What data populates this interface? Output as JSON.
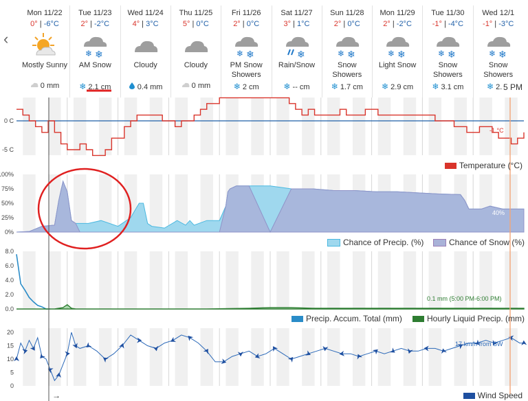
{
  "forecast": {
    "days": [
      {
        "name": "Mon 11/22",
        "hi": "0°",
        "lo": "-6°C",
        "cond": "Mostly Sunny",
        "icon": "sun-cloud-icon",
        "precip_icon": "cloud-icon",
        "precip": "0 mm"
      },
      {
        "name": "Tue 11/23",
        "hi": "2°",
        "lo": "-2°C",
        "cond": "AM Snow",
        "icon": "snow-cloud-icon",
        "precip_icon": "snowflake-icon",
        "precip": "2.1 cm"
      },
      {
        "name": "Wed 11/24",
        "hi": "4°",
        "lo": "3°C",
        "cond": "Cloudy",
        "icon": "cloud-icon",
        "precip_icon": "raindrop-icon",
        "precip": "0.4 mm"
      },
      {
        "name": "Thu 11/25",
        "hi": "5°",
        "lo": "0°C",
        "cond": "Cloudy",
        "icon": "cloud-icon",
        "precip_icon": "cloud-icon",
        "precip": "0 mm"
      },
      {
        "name": "Fri 11/26",
        "hi": "2°",
        "lo": "0°C",
        "cond": "PM Snow Showers",
        "icon": "snow-cloud-icon",
        "precip_icon": "snowflake-icon",
        "precip": "2 cm"
      },
      {
        "name": "Sat 11/27",
        "hi": "3°",
        "lo": "1°C",
        "cond": "Rain/Snow",
        "icon": "rain-snow-icon",
        "precip_icon": "snowflake-icon",
        "precip": "-- cm"
      },
      {
        "name": "Sun 11/28",
        "hi": "2°",
        "lo": "0°C",
        "cond": "Snow Showers",
        "icon": "snow-cloud-icon",
        "precip_icon": "snowflake-icon",
        "precip": "1.7 cm"
      },
      {
        "name": "Mon 11/29",
        "hi": "2°",
        "lo": "-2°C",
        "cond": "Light Snow",
        "icon": "snow-cloud-icon",
        "precip_icon": "snowflake-icon",
        "precip": "2.9 cm"
      },
      {
        "name": "Tue 11/30",
        "hi": "-1°",
        "lo": "-4°C",
        "cond": "Snow Showers",
        "icon": "snow-cloud-icon",
        "precip_icon": "snowflake-icon",
        "precip": "3.1 cm"
      },
      {
        "name": "Wed 12/1",
        "hi": "-1°",
        "lo": "-3°C",
        "cond": "Snow Showers",
        "icon": "snow-cloud-icon",
        "precip_icon": "snowflake-icon",
        "precip": "2.←"
      }
    ],
    "current_time": "5 PM",
    "nav_prev": "‹"
  },
  "colors": {
    "temperature": "#d9342b",
    "zero_line": "#1f5fa8",
    "chance_precip": "#9fd8ee",
    "chance_snow": "#a9b2d8",
    "accum": "#2a8cc8",
    "hourly_liquid": "#2e7d32",
    "wind": "#2a68b8",
    "highlight_circle": "#e02020",
    "current_time_line": "#f2a679"
  },
  "chart_data": [
    {
      "type": "line",
      "legend": "Temperature (°C)",
      "ylabels": [
        "0 C",
        "-5 C"
      ],
      "annotation": "-1 °C",
      "x": [
        0,
        3,
        6,
        9,
        12,
        15,
        18,
        21,
        24,
        27,
        30,
        33,
        36,
        39,
        42,
        45,
        48,
        51,
        54,
        57,
        60,
        63,
        66,
        69,
        72,
        75,
        78,
        81,
        84,
        87,
        90,
        93,
        96,
        99,
        102,
        105,
        108,
        111,
        114,
        117,
        120,
        123,
        126,
        129,
        132,
        135,
        138,
        141,
        144,
        147,
        150,
        153,
        156,
        159,
        162,
        165,
        168,
        171,
        174,
        177,
        180,
        183,
        186,
        189,
        192,
        195,
        198,
        201,
        204,
        207,
        210,
        213,
        216,
        219,
        222,
        225,
        228,
        231,
        234,
        237,
        240
      ],
      "y": [
        2,
        1,
        0,
        -1,
        -2,
        0,
        -2,
        -4,
        -5,
        -5,
        -4,
        -5,
        -6,
        -6,
        -5,
        -3,
        -3,
        -1,
        0,
        1,
        1,
        1,
        1,
        0,
        0,
        -1,
        0,
        0,
        1,
        2,
        3,
        3,
        4,
        4,
        4,
        4,
        4,
        4,
        4,
        4,
        4,
        4,
        4,
        3,
        2,
        1,
        2,
        1,
        1,
        1,
        1,
        2,
        1,
        1,
        1,
        2,
        2,
        1,
        1,
        1,
        1,
        1,
        1,
        1,
        1,
        1,
        0,
        0,
        0,
        -1,
        -1,
        -2,
        -2,
        -1,
        -1,
        -2,
        -3,
        -3,
        -4,
        -3,
        -2
      ]
    },
    {
      "type": "area",
      "ylabels": [
        "100%",
        "75%",
        "50%",
        "25%",
        "0%"
      ],
      "legend_precip": "Chance of Precip. (%)",
      "legend_snow": "Chance of Snow (%)",
      "annotation": "40%",
      "x": [
        0,
        6,
        12,
        18,
        20,
        22,
        24,
        26,
        28,
        30,
        34,
        40,
        48,
        54,
        58,
        60,
        62,
        64,
        70,
        76,
        80,
        82,
        84,
        90,
        96,
        99,
        100,
        101,
        104,
        110,
        120,
        130,
        140,
        150,
        160,
        170,
        180,
        190,
        200,
        210,
        212,
        214,
        220,
        224,
        230,
        236,
        240
      ],
      "precip": [
        0,
        1,
        10,
        12,
        55,
        88,
        70,
        20,
        15,
        15,
        15,
        20,
        10,
        25,
        50,
        50,
        15,
        10,
        7,
        20,
        12,
        20,
        12,
        20,
        20,
        45,
        70,
        75,
        80,
        80,
        80,
        75,
        75,
        72,
        72,
        70,
        70,
        68,
        66,
        65,
        55,
        40,
        40,
        45,
        40,
        40,
        40
      ],
      "snow": [
        0,
        1,
        10,
        12,
        55,
        88,
        70,
        20,
        15,
        0,
        0,
        0,
        0,
        0,
        0,
        0,
        0,
        0,
        0,
        0,
        0,
        0,
        0,
        0,
        0,
        45,
        70,
        75,
        80,
        80,
        0,
        75,
        75,
        72,
        72,
        70,
        70,
        68,
        66,
        65,
        55,
        40,
        40,
        45,
        40,
        40,
        40
      ]
    },
    {
      "type": "area",
      "ylabels": [
        "8.0",
        "6.0",
        "4.0",
        "2.0",
        "0.0"
      ],
      "legend_accum": "Precip. Accum. Total (mm)",
      "legend_hourly": "Hourly Liquid Precip. (mm)",
      "annotation": "0.1 mm (5:00 PM-6:00 PM)",
      "x": [
        0,
        2,
        4,
        6,
        8,
        10,
        12,
        14,
        16,
        18,
        20,
        22,
        24,
        26,
        28,
        30,
        40,
        60,
        90,
        110,
        120,
        130,
        140,
        150,
        160,
        170,
        180,
        200,
        220,
        240
      ],
      "accum": [
        7.6,
        3.5,
        2.6,
        1.6,
        1.0,
        0.5,
        0.3,
        0,
        0,
        0,
        0,
        0,
        0,
        0,
        0,
        0,
        0,
        0,
        0,
        0,
        0,
        0,
        0,
        0,
        0,
        0,
        0,
        0,
        0,
        0
      ],
      "hourly": [
        0,
        0,
        0,
        0,
        0,
        0,
        0,
        0,
        0,
        0,
        0.1,
        0.2,
        0.6,
        0.1,
        0,
        0,
        0,
        0,
        0,
        0.1,
        0.2,
        0.2,
        0.1,
        0.1,
        0.1,
        0.1,
        0.1,
        0.1,
        0.1,
        0.1
      ]
    },
    {
      "type": "line",
      "ylabels": [
        "20",
        "15",
        "10",
        "5",
        "0"
      ],
      "legend": "Wind Speed",
      "annotation": "17 km/h from SW",
      "x": [
        0,
        2,
        4,
        6,
        8,
        10,
        12,
        14,
        16,
        18,
        20,
        22,
        24,
        26,
        28,
        30,
        34,
        38,
        42,
        46,
        50,
        54,
        58,
        62,
        66,
        70,
        74,
        78,
        82,
        86,
        90,
        94,
        98,
        102,
        106,
        110,
        114,
        118,
        122,
        126,
        130,
        134,
        138,
        142,
        146,
        150,
        154,
        158,
        162,
        166,
        170,
        174,
        178,
        182,
        186,
        190,
        194,
        198,
        202,
        206,
        210,
        214,
        218,
        222,
        226,
        230,
        234,
        238,
        240
      ],
      "y": [
        10,
        16,
        13,
        17,
        14,
        18,
        11,
        10,
        6,
        2,
        4,
        8,
        12,
        20,
        15,
        14,
        15,
        13,
        10,
        12,
        15,
        19,
        17,
        15,
        14,
        16,
        17,
        19,
        18,
        16,
        13,
        9,
        9,
        11,
        12,
        13,
        11,
        12,
        14,
        12,
        10,
        11,
        12,
        13,
        14,
        13,
        12,
        12,
        11,
        12,
        13,
        12,
        13,
        14,
        13,
        13,
        14,
        14,
        13,
        14,
        15,
        16,
        16,
        17,
        16,
        17,
        18,
        16,
        16
      ]
    }
  ]
}
